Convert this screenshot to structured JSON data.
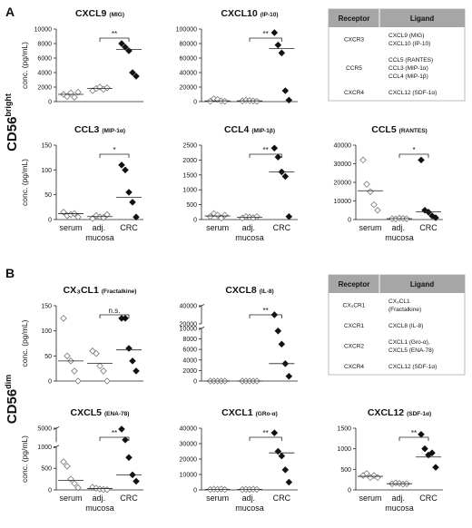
{
  "panels": [
    {
      "label": "A",
      "row_label": "CD56",
      "row_label_sup": "bright",
      "table": {
        "headers": [
          "Receptor",
          "Ligand"
        ],
        "rows": [
          {
            "receptor": "CXCR3",
            "ligand": [
              "CXCL9 (MIG)",
              "CXCL10 (IP-10)"
            ]
          },
          {
            "receptor": "CCR5",
            "ligand": [
              "CCL5 (RANTES)",
              "CCL3 (MIP-1α)",
              "CCL4 (MIP-1β)"
            ]
          },
          {
            "receptor": "CXCR4",
            "ligand": [
              "CXCL12 (SDF-1α)"
            ]
          }
        ]
      }
    },
    {
      "label": "B",
      "row_label": "CD56",
      "row_label_sup": "dim",
      "table": {
        "headers": [
          "Receptor",
          "Ligand"
        ],
        "rows": [
          {
            "receptor": "CX₃CR1",
            "ligand": [
              "CX₃CL1",
              "(Fractalkine)"
            ]
          },
          {
            "receptor": "CXCR1",
            "ligand": [
              "CXCL8 (IL-8)"
            ]
          },
          {
            "receptor": "CXCR2",
            "ligand": [
              "CXCL1 (Gro-α),",
              "CXCL5 (ENA-78)"
            ]
          },
          {
            "receptor": "CXCR4",
            "ligand": [
              "CXCL12 (SDF-1α)"
            ]
          }
        ]
      }
    }
  ],
  "chart_data": [
    {
      "type": "dot",
      "title": "CXCL9",
      "subtitle": "(MIG)",
      "ylabel": "conc. (pg/mL)",
      "ylim": [
        0,
        10000
      ],
      "yticks": [
        0,
        2000,
        4000,
        6000,
        8000,
        10000
      ],
      "values": [
        [
          1000,
          700,
          1200,
          600,
          1300
        ],
        [
          1500,
          1800,
          2000,
          1700,
          1900
        ],
        [
          8000,
          7500,
          7000,
          4000,
          3500
        ]
      ],
      "medians": [
        1000,
        1800,
        7200
      ],
      "filled": [
        false,
        false,
        true
      ],
      "color": "#111111",
      "significance": "**"
    },
    {
      "type": "dot",
      "title": "CXCL10",
      "subtitle": "(IP-10)",
      "ylim": [
        0,
        100000
      ],
      "yticks": [
        0,
        20000,
        40000,
        60000,
        80000,
        100000
      ],
      "values": [
        [
          500,
          4000,
          3000,
          1000,
          500
        ],
        [
          1000,
          2000,
          1500,
          1000,
          500
        ],
        [
          95000,
          78000,
          67000,
          15000,
          2000
        ]
      ],
      "medians": [
        1000,
        1000,
        73000
      ],
      "filled": [
        false,
        false,
        true
      ],
      "color": "#111111",
      "significance": "**"
    },
    {
      "type": "dot",
      "title": "CCL3",
      "subtitle": "(MIP-1α)",
      "ylabel": "conc. (pg/mL)",
      "ylim": [
        0,
        150
      ],
      "yticks": [
        0,
        50,
        100,
        150
      ],
      "categories": [
        "serum",
        "adj. mucosa",
        "CRC"
      ],
      "values": [
        [
          15,
          8,
          10,
          12,
          5
        ],
        [
          2,
          8,
          5,
          4,
          10
        ],
        [
          110,
          100,
          55,
          35,
          5
        ]
      ],
      "medians": [
        12,
        6,
        45
      ],
      "filled": [
        false,
        false,
        true
      ],
      "color": "#111111",
      "significance": "*"
    },
    {
      "type": "dot",
      "title": "CCL4",
      "subtitle": "(MIP-1β)",
      "ylim": [
        0,
        2500
      ],
      "yticks": [
        0,
        500,
        1000,
        1500,
        2000,
        2500
      ],
      "categories": [
        "serum",
        "adj. mucosa",
        "CRC"
      ],
      "values": [
        [
          100,
          200,
          150,
          50,
          150
        ],
        [
          50,
          100,
          80,
          60,
          100
        ],
        [
          2400,
          2100,
          1600,
          1450,
          100
        ]
      ],
      "medians": [
        120,
        80,
        1600
      ],
      "filled": [
        false,
        false,
        true
      ],
      "color": "#111111",
      "significance": "**"
    },
    {
      "type": "dot",
      "title": "CCL5",
      "subtitle": "(RANTES)",
      "ylim": [
        0,
        40000
      ],
      "yticks": [
        0,
        10000,
        20000,
        30000,
        40000
      ],
      "categories": [
        "serum",
        "adj. mucosa",
        "CRC"
      ],
      "values": [
        [
          32000,
          19000,
          15000,
          8000,
          5000
        ],
        [
          500,
          300,
          800,
          600,
          400
        ],
        [
          32000,
          5000,
          4000,
          2000,
          1000
        ]
      ],
      "medians": [
        15500,
        500,
        4200
      ],
      "filled": [
        false,
        false,
        true
      ],
      "color": "#111111",
      "significance": "*"
    },
    {
      "type": "dot",
      "title": "CX₃CL1",
      "subtitle": "(Fractalkine)",
      "ylabel": "conc. (pg/mL)",
      "ylim": [
        0,
        150
      ],
      "yticks": [
        0,
        50,
        100,
        150
      ],
      "values": [
        [
          125,
          50,
          40,
          20,
          0
        ],
        [
          60,
          55,
          30,
          20,
          0
        ],
        [
          125,
          125,
          65,
          40,
          20
        ]
      ],
      "medians": [
        40,
        35,
        62
      ],
      "filled": [
        false,
        false,
        true
      ],
      "color": "#111111",
      "significance": "n.s."
    },
    {
      "type": "dot",
      "title": "CXCL8",
      "subtitle": "(IL-8)",
      "ysegments": [
        {
          "lim": [
            0,
            10000
          ],
          "ticks": [
            0,
            2000,
            4000,
            6000,
            8000,
            10000
          ]
        },
        {
          "lim": [
            20000,
            40000
          ],
          "ticks": [
            20000,
            40000
          ]
        }
      ],
      "values": [
        [
          0,
          0,
          0,
          0,
          0
        ],
        [
          0,
          0,
          0,
          0,
          0
        ],
        [
          30000,
          9500,
          7000,
          3300,
          900
        ]
      ],
      "medians": [
        0,
        0,
        3300
      ],
      "filled": [
        false,
        false,
        true
      ],
      "color": "#111111",
      "significance": "**"
    },
    {
      "type": "dot",
      "title": "CXCL5",
      "subtitle": "(ENA-78)",
      "ylabel": "conc. (pg/mL)",
      "ysegments": [
        {
          "lim": [
            0,
            1000
          ],
          "ticks": [
            0,
            500,
            1000
          ]
        },
        {
          "lim": [
            2000,
            5000
          ],
          "ticks": [
            5000
          ]
        }
      ],
      "categories": [
        "serum",
        "adj. mucosa",
        "CRC"
      ],
      "values": [
        [
          650,
          550,
          250,
          150,
          50
        ],
        [
          60,
          40,
          20,
          10,
          5
        ],
        [
          4800,
          2500,
          750,
          350,
          200
        ]
      ],
      "medians": [
        220,
        30,
        350
      ],
      "filled": [
        false,
        false,
        true
      ],
      "color": "#111111",
      "significance": "**"
    },
    {
      "type": "dot",
      "title": "CXCL1",
      "subtitle": "(GRo-α)",
      "ylim": [
        0,
        40000
      ],
      "yticks": [
        0,
        10000,
        20000,
        30000,
        40000
      ],
      "categories": [
        "serum",
        "adj. mucosa",
        "CRC"
      ],
      "values": [
        [
          300,
          500,
          400,
          600,
          200
        ],
        [
          200,
          400,
          300,
          500,
          300
        ],
        [
          37000,
          25000,
          22000,
          13000,
          5000
        ]
      ],
      "medians": [
        300,
        300,
        24000
      ],
      "filled": [
        false,
        false,
        true
      ],
      "color": "#111111",
      "significance": "**"
    },
    {
      "type": "dot",
      "title": "CXCL12",
      "subtitle": "(SDF-1α)",
      "ylim": [
        0,
        1500
      ],
      "yticks": [
        0,
        500,
        1000,
        1500
      ],
      "categories": [
        "serum",
        "adj. mucosa",
        "CRC"
      ],
      "values": [
        [
          350,
          400,
          300,
          350,
          300
        ],
        [
          150,
          170,
          160,
          140,
          150
        ],
        [
          1350,
          1000,
          850,
          900,
          550
        ]
      ],
      "medians": [
        330,
        150,
        800
      ],
      "filled": [
        false,
        false,
        true
      ],
      "color": "#111111",
      "significance": "**"
    }
  ]
}
